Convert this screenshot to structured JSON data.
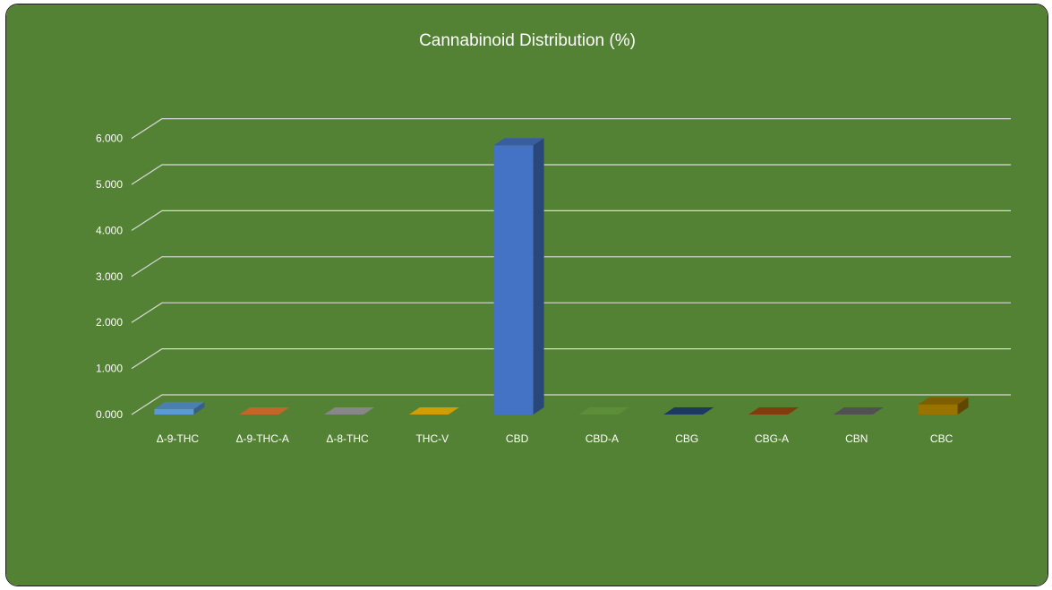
{
  "chart_data": {
    "type": "bar",
    "title": "Cannabinoid Distribution (%)",
    "categories": [
      "Δ-9-THC",
      "Δ-9-THC-A",
      "Δ-8-THC",
      "THC-V",
      "CBD",
      "CBD-A",
      "CBG",
      "CBG-A",
      "CBN",
      "CBC"
    ],
    "values": [
      0.12,
      0.0,
      0.0,
      0.0,
      5.85,
      0.0,
      0.0,
      0.0,
      0.0,
      0.22
    ],
    "y_ticks": [
      "0.000",
      "1.000",
      "2.000",
      "3.000",
      "4.000",
      "5.000",
      "6.000"
    ],
    "ylim": [
      0,
      6.0
    ],
    "xlabel": "",
    "ylabel": "",
    "grid": true,
    "legend": "none"
  },
  "colors": {
    "background": "#548235",
    "bar_colors": [
      "#5b9bd5",
      "#ed7d31",
      "#a5a5a5",
      "#ffc000",
      "#4472c4",
      "#70ad47",
      "#264478",
      "#9e480e",
      "#636363",
      "#997300"
    ],
    "gridline": "#d9d9d9",
    "text": "#ffffff"
  }
}
